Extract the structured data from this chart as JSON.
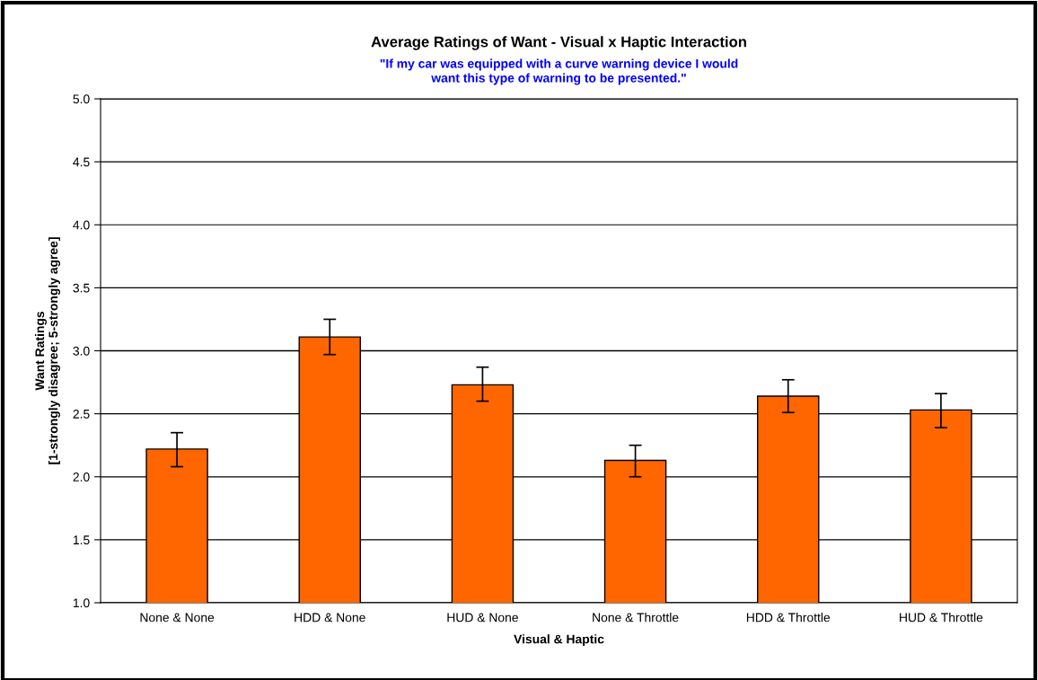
{
  "chart_data": {
    "type": "bar",
    "title": "Average Ratings of Want - Visual x Haptic Interaction",
    "subtitle": "\"If my car was equipped with a curve warning device I would\nwant this type of warning to be presented.\"",
    "xlabel": "Visual & Haptic",
    "ylabel": "Want Ratings\n[1-strongly disagree; 5-strongly agree]",
    "categories": [
      "None & None",
      "HDD & None",
      "HUD & None",
      "None & Throttle",
      "HDD & Throttle",
      "HUD & Throttle"
    ],
    "series": [
      {
        "color": "#ff6600",
        "values": [
          2.22,
          3.11,
          2.73,
          2.13,
          2.64,
          2.53
        ],
        "errors": [
          [
            2.08,
            2.35
          ],
          [
            2.97,
            3.25
          ],
          [
            2.6,
            2.87
          ],
          [
            2.0,
            2.25
          ],
          [
            2.51,
            2.77
          ],
          [
            2.39,
            2.66
          ]
        ]
      }
    ],
    "ylim": [
      1.0,
      5.0
    ],
    "yticks": [
      {
        "value": 1.0,
        "label": "1.0"
      },
      {
        "value": 1.5,
        "label": "1.5"
      },
      {
        "value": 2.0,
        "label": "2.0"
      },
      {
        "value": 2.5,
        "label": "2.5"
      },
      {
        "value": 3.0,
        "label": "3.0"
      },
      {
        "value": 3.5,
        "label": "3.5"
      },
      {
        "value": 4.0,
        "label": "4.0"
      },
      {
        "value": 4.5,
        "label": "4.5"
      },
      {
        "value": 5.0,
        "label": "5.0"
      }
    ],
    "grid": "y",
    "legend": false
  }
}
